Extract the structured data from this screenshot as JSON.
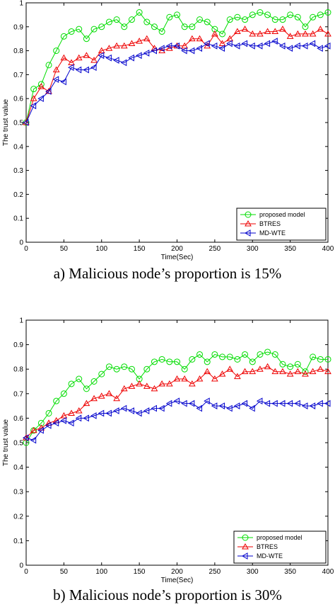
{
  "chart_data": [
    {
      "type": "line",
      "caption": "a)  Malicious node’s proportion is 15%",
      "xlabel": "Time(Sec)",
      "ylabel": "The trust value",
      "xlim": [
        0,
        400
      ],
      "ylim": [
        0,
        1
      ],
      "xticks": [
        "0",
        "50",
        "100",
        "150",
        "200",
        "250",
        "300",
        "350",
        "400"
      ],
      "yticks": [
        "0",
        "0.1",
        "0.2",
        "0.3",
        "0.4",
        "0.5",
        "0.6",
        "0.7",
        "0.8",
        "0.9",
        "1"
      ],
      "grid": false,
      "legend_position": "bottom-right",
      "x": [
        0,
        10,
        20,
        30,
        40,
        50,
        60,
        70,
        80,
        90,
        100,
        110,
        120,
        130,
        140,
        150,
        160,
        170,
        180,
        190,
        200,
        210,
        220,
        230,
        240,
        250,
        260,
        270,
        280,
        290,
        300,
        310,
        320,
        330,
        340,
        350,
        360,
        370,
        380,
        390,
        400
      ],
      "series": [
        {
          "name": "proposed model",
          "color": "#00dd00",
          "marker": "circle",
          "values": [
            0.5,
            0.64,
            0.66,
            0.74,
            0.8,
            0.86,
            0.88,
            0.89,
            0.85,
            0.89,
            0.9,
            0.92,
            0.93,
            0.9,
            0.93,
            0.96,
            0.92,
            0.9,
            0.88,
            0.94,
            0.95,
            0.9,
            0.9,
            0.93,
            0.92,
            0.89,
            0.87,
            0.93,
            0.94,
            0.93,
            0.95,
            0.96,
            0.95,
            0.93,
            0.93,
            0.95,
            0.94,
            0.9,
            0.94,
            0.95,
            0.96
          ]
        },
        {
          "name": "BTRES",
          "color": "#ee0000",
          "marker": "triangle-up",
          "values": [
            0.5,
            0.6,
            0.65,
            0.63,
            0.72,
            0.77,
            0.75,
            0.77,
            0.78,
            0.76,
            0.8,
            0.81,
            0.82,
            0.82,
            0.83,
            0.84,
            0.85,
            0.81,
            0.8,
            0.81,
            0.82,
            0.82,
            0.85,
            0.85,
            0.82,
            0.87,
            0.83,
            0.85,
            0.88,
            0.89,
            0.87,
            0.87,
            0.88,
            0.88,
            0.89,
            0.86,
            0.87,
            0.87,
            0.87,
            0.89,
            0.87
          ]
        },
        {
          "name": "MD-WTE",
          "color": "#0000cc",
          "marker": "triangle-left",
          "values": [
            0.5,
            0.57,
            0.6,
            0.63,
            0.68,
            0.67,
            0.73,
            0.72,
            0.72,
            0.73,
            0.78,
            0.77,
            0.76,
            0.75,
            0.77,
            0.78,
            0.79,
            0.8,
            0.81,
            0.82,
            0.82,
            0.8,
            0.8,
            0.81,
            0.83,
            0.82,
            0.81,
            0.83,
            0.82,
            0.83,
            0.82,
            0.82,
            0.83,
            0.84,
            0.82,
            0.81,
            0.82,
            0.82,
            0.83,
            0.81,
            0.82
          ]
        }
      ]
    },
    {
      "type": "line",
      "caption": "b)  Malicious node’s proportion is 30%",
      "xlabel": "Time(Sec)",
      "ylabel": "The trust value",
      "xlim": [
        0,
        400
      ],
      "ylim": [
        0,
        1
      ],
      "xticks": [
        "0",
        "50",
        "100",
        "150",
        "200",
        "250",
        "300",
        "350",
        "400"
      ],
      "yticks": [
        "0",
        "0.1",
        "0.2",
        "0.3",
        "0.4",
        "0.5",
        "0.6",
        "0.7",
        "0.8",
        "0.9",
        "1"
      ],
      "grid": false,
      "legend_position": "bottom-right",
      "x": [
        0,
        10,
        20,
        30,
        40,
        50,
        60,
        70,
        80,
        90,
        100,
        110,
        120,
        130,
        140,
        150,
        160,
        170,
        180,
        190,
        200,
        210,
        220,
        230,
        240,
        250,
        260,
        270,
        280,
        290,
        300,
        310,
        320,
        330,
        340,
        350,
        360,
        370,
        380,
        390,
        400
      ],
      "series": [
        {
          "name": "proposed model",
          "color": "#00dd00",
          "marker": "circle",
          "values": [
            0.5,
            0.55,
            0.58,
            0.62,
            0.67,
            0.7,
            0.74,
            0.76,
            0.72,
            0.75,
            0.78,
            0.81,
            0.8,
            0.81,
            0.8,
            0.76,
            0.8,
            0.83,
            0.84,
            0.83,
            0.83,
            0.8,
            0.84,
            0.86,
            0.83,
            0.86,
            0.85,
            0.85,
            0.84,
            0.86,
            0.83,
            0.86,
            0.87,
            0.86,
            0.82,
            0.81,
            0.82,
            0.79,
            0.85,
            0.84,
            0.84
          ]
        },
        {
          "name": "BTRES",
          "color": "#ee0000",
          "marker": "triangle-up",
          "values": [
            0.52,
            0.55,
            0.56,
            0.58,
            0.59,
            0.61,
            0.62,
            0.63,
            0.66,
            0.68,
            0.69,
            0.7,
            0.68,
            0.72,
            0.73,
            0.74,
            0.73,
            0.72,
            0.74,
            0.74,
            0.76,
            0.76,
            0.74,
            0.76,
            0.79,
            0.76,
            0.78,
            0.8,
            0.77,
            0.79,
            0.79,
            0.8,
            0.81,
            0.79,
            0.79,
            0.78,
            0.79,
            0.78,
            0.79,
            0.8,
            0.79
          ]
        },
        {
          "name": "MD-WTE",
          "color": "#0000cc",
          "marker": "triangle-left",
          "values": [
            0.52,
            0.51,
            0.55,
            0.57,
            0.58,
            0.59,
            0.58,
            0.6,
            0.6,
            0.61,
            0.62,
            0.62,
            0.63,
            0.64,
            0.63,
            0.62,
            0.63,
            0.64,
            0.64,
            0.66,
            0.67,
            0.66,
            0.66,
            0.64,
            0.67,
            0.65,
            0.65,
            0.64,
            0.65,
            0.66,
            0.64,
            0.67,
            0.66,
            0.66,
            0.66,
            0.66,
            0.66,
            0.65,
            0.65,
            0.66,
            0.66
          ]
        }
      ]
    }
  ]
}
